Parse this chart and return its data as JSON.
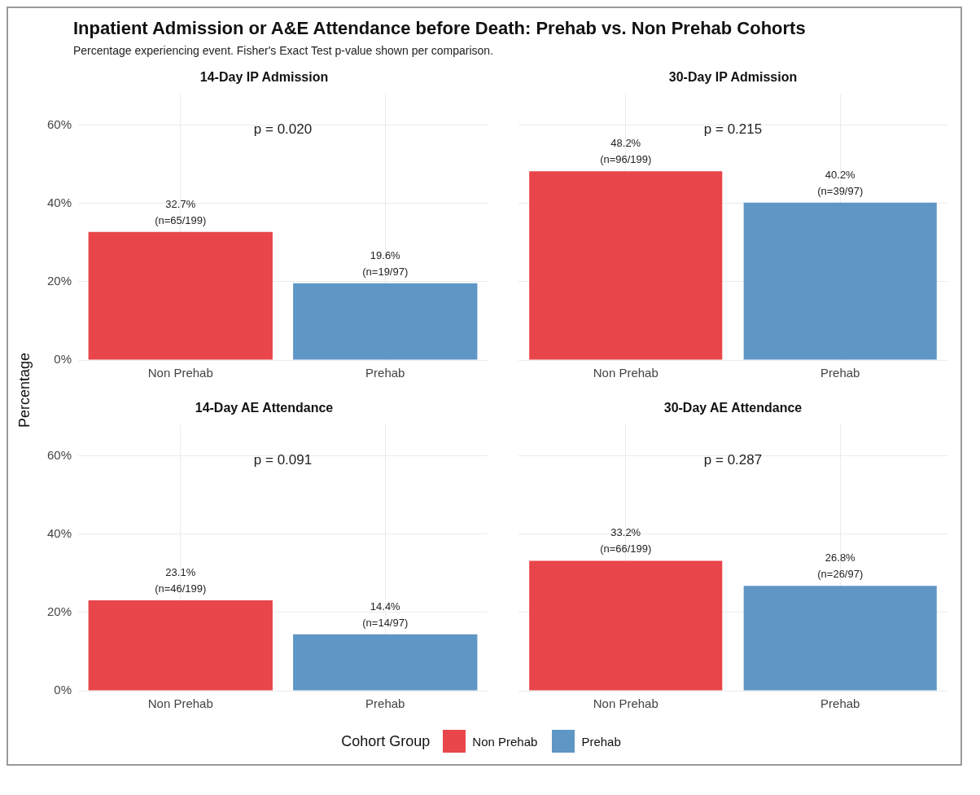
{
  "chart_data": [
    {
      "type": "other",
      "title": "Inpatient Admission or A&E Attendance before Death: Prehab vs. Non Prehab Cohorts",
      "subtitle": "Percentage experiencing event. Fisher's Exact Test p-value shown per comparison."
    },
    {
      "type": "bar",
      "title": "14-Day IP Admission",
      "categories": [
        "Non Prehab",
        "Prehab"
      ],
      "ylabel": "Percentage",
      "legend_title": "Cohort Group",
      "legend": "bottom",
      "ylim": [
        0,
        68
      ],
      "yticks": [
        {
          "value": 0,
          "label": "0%"
        },
        {
          "value": 20,
          "label": "20%"
        },
        {
          "value": 40,
          "label": "40%"
        },
        {
          "value": 60,
          "label": "60%"
        }
      ],
      "grid": true,
      "annotations": [
        "p = 0.020"
      ],
      "series": [
        {
          "name": "Non Prehab",
          "color": "#e8464a",
          "values": [
            32.7,
            null
          ],
          "value_labels": [
            "32.7%\n(n=65/199)",
            null
          ]
        },
        {
          "name": "Prehab",
          "color": "#5e96c5",
          "values": [
            null,
            19.6
          ],
          "value_labels": [
            null,
            "19.6%\n(n=19/97)"
          ]
        }
      ]
    },
    {
      "type": "bar",
      "title": "30-Day IP Admission",
      "categories": [
        "Non Prehab",
        "Prehab"
      ],
      "ylim": [
        0,
        68
      ],
      "yticks": [
        {
          "value": 0,
          "label": null
        },
        {
          "value": 20,
          "label": null
        },
        {
          "value": 40,
          "label": null
        },
        {
          "value": 60,
          "label": null
        }
      ],
      "grid": true,
      "tick_labels": "x",
      "annotations": [
        "p = 0.215"
      ],
      "series": [
        {
          "color": "#e8464a",
          "values": [
            48.2,
            null
          ],
          "value_labels": [
            "48.2%\n(n=96/199)",
            null
          ]
        },
        {
          "color": "#5e96c5",
          "values": [
            null,
            40.2
          ],
          "value_labels": [
            null,
            "40.2%\n(n=39/97)"
          ]
        }
      ]
    },
    {
      "type": "bar",
      "title": "14-Day AE Attendance",
      "categories": [
        "Non Prehab",
        "Prehab"
      ],
      "ylim": [
        0,
        68
      ],
      "yticks": [
        {
          "value": 0,
          "label": "0%"
        },
        {
          "value": 20,
          "label": "20%"
        },
        {
          "value": 40,
          "label": "40%"
        },
        {
          "value": 60,
          "label": "60%"
        }
      ],
      "grid": true,
      "annotations": [
        "p = 0.091"
      ],
      "series": [
        {
          "color": "#e8464a",
          "values": [
            23.1,
            null
          ],
          "value_labels": [
            "23.1%\n(n=46/199)",
            null
          ]
        },
        {
          "color": "#5e96c5",
          "values": [
            null,
            14.4
          ],
          "value_labels": [
            null,
            "14.4%\n(n=14/97)"
          ]
        }
      ]
    },
    {
      "type": "bar",
      "title": "30-Day AE Attendance",
      "categories": [
        "Non Prehab",
        "Prehab"
      ],
      "ylim": [
        0,
        68
      ],
      "yticks": [
        {
          "value": 0,
          "label": null
        },
        {
          "value": 20,
          "label": null
        },
        {
          "value": 40,
          "label": null
        },
        {
          "value": 60,
          "label": null
        }
      ],
      "grid": true,
      "tick_labels": "x",
      "annotations": [
        "p = 0.287"
      ],
      "series": [
        {
          "color": "#e8464a",
          "values": [
            33.2,
            null
          ],
          "value_labels": [
            "33.2%\n(n=66/199)",
            null
          ]
        },
        {
          "color": "#5e96c5",
          "values": [
            null,
            26.8
          ],
          "value_labels": [
            null,
            "26.8%\n(n=26/97)"
          ]
        }
      ]
    }
  ]
}
